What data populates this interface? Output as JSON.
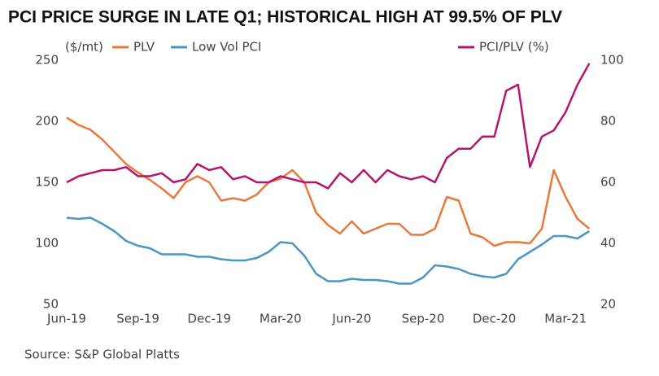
{
  "chart_data": {
    "type": "line",
    "title": "PCI PRICE SURGE IN LATE Q1; HISTORICAL HIGH AT 99.5% OF PLV",
    "y_label": "($/mt)",
    "source": "Source: S&P Global Platts",
    "categories": [
      "Jun-19",
      null,
      null,
      null,
      null,
      null,
      "Sep-19",
      null,
      null,
      null,
      null,
      null,
      "Dec-19",
      null,
      null,
      null,
      null,
      null,
      "Mar-20",
      null,
      null,
      null,
      null,
      null,
      "Jun-20",
      null,
      null,
      null,
      null,
      null,
      "Sep-20",
      null,
      null,
      null,
      null,
      null,
      "Dec-20",
      null,
      null,
      null,
      null,
      null,
      "Mar-21",
      null,
      null
    ],
    "ylim": [
      50,
      250
    ],
    "yticks": [
      50,
      100,
      150,
      200,
      250
    ],
    "y2lim": [
      20,
      100
    ],
    "y2ticks": [
      20,
      40,
      60,
      80,
      100
    ],
    "series": [
      {
        "name": "PLV",
        "color": "#e8793a",
        "values": [
          203,
          197,
          193,
          185,
          175,
          165,
          158,
          152,
          145,
          137,
          150,
          155,
          150,
          135,
          137,
          135,
          140,
          150,
          153,
          160,
          150,
          125,
          115,
          108,
          118,
          108,
          112,
          116,
          116,
          107,
          107,
          112,
          138,
          135,
          108,
          105,
          98,
          101,
          101,
          100,
          112,
          160,
          138,
          120,
          112
        ]
      },
      {
        "name": "Low Vol PCI",
        "color": "#4a97c2",
        "values": [
          121,
          120,
          121,
          116,
          110,
          102,
          98,
          96,
          91,
          91,
          91,
          89,
          89,
          87,
          86,
          86,
          88,
          93,
          101,
          100,
          90,
          75,
          69,
          69,
          71,
          70,
          70,
          69,
          67,
          67,
          72,
          82,
          81,
          79,
          75,
          73,
          72,
          75,
          87,
          93,
          99,
          106,
          106,
          104,
          110
        ]
      },
      {
        "name": "PCI/PLV (%)",
        "color": "#b5156e",
        "axis": "y2",
        "values": [
          60,
          62,
          63,
          64,
          64,
          65,
          62,
          62,
          63,
          60,
          61,
          66,
          64,
          65,
          61,
          62,
          60,
          60,
          62,
          61,
          60,
          60,
          58,
          63,
          60,
          64,
          60,
          64,
          62,
          61,
          62,
          60,
          68,
          71,
          71,
          75,
          75,
          90,
          92,
          65,
          75,
          77,
          83,
          92,
          99
        ]
      }
    ]
  }
}
